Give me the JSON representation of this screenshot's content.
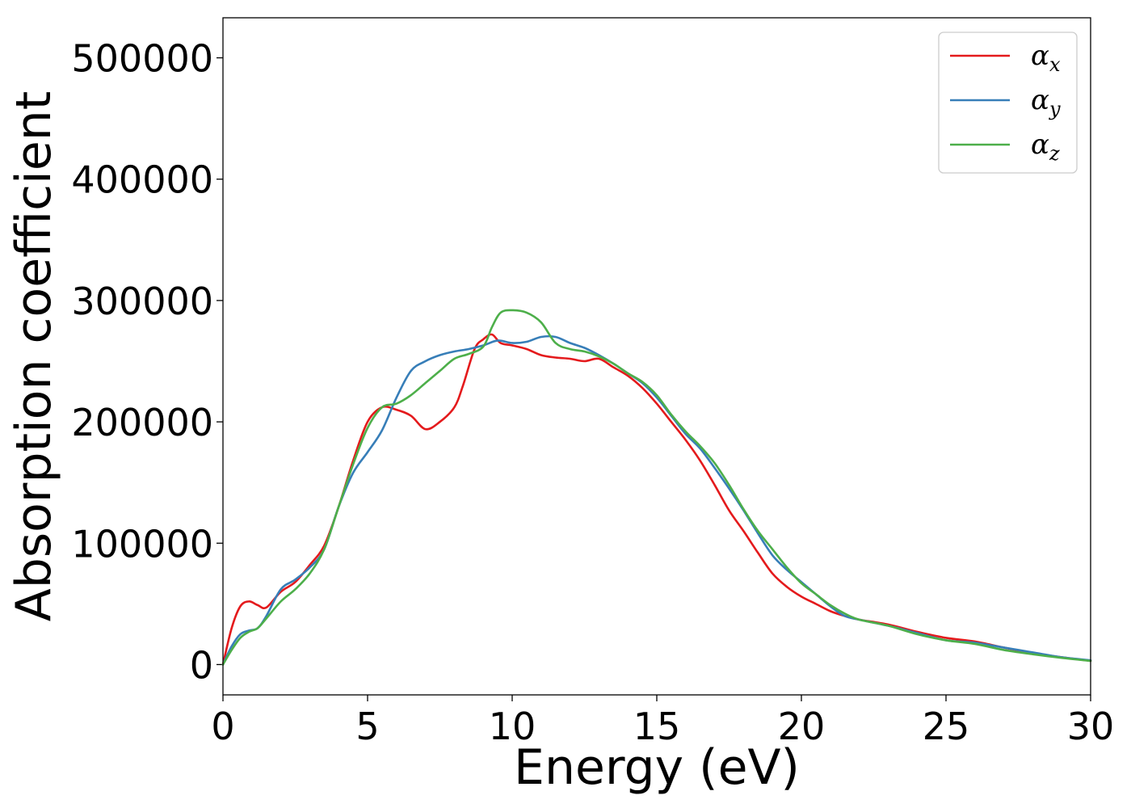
{
  "chart_data": {
    "type": "line",
    "title": "",
    "xlabel": "Energy (eV)",
    "ylabel": "Absorption coefficient",
    "xlim": [
      0,
      30
    ],
    "ylim": [
      -25000,
      533000
    ],
    "x_ticks": [
      0,
      5,
      10,
      15,
      20,
      25,
      30
    ],
    "y_ticks": [
      0,
      100000,
      200000,
      300000,
      400000,
      500000
    ],
    "grid": false,
    "legend_position": "top-right",
    "series": [
      {
        "name": "α",
        "subscript": "x",
        "color": "#e41a1c",
        "x": [
          0,
          0.3,
          0.6,
          0.9,
          1.2,
          1.5,
          2.0,
          2.5,
          3.0,
          3.5,
          4.0,
          4.5,
          5.0,
          5.5,
          6.0,
          6.5,
          7.0,
          7.5,
          8.0,
          8.3,
          8.7,
          9.0,
          9.3,
          9.6,
          10.0,
          10.5,
          11.0,
          11.5,
          12.0,
          12.5,
          13.0,
          13.5,
          14.0,
          14.5,
          15.0,
          15.5,
          16.0,
          16.5,
          17.0,
          17.5,
          18.0,
          18.5,
          19.0,
          19.5,
          20.0,
          20.5,
          21.0,
          21.5,
          22.0,
          23.0,
          24.0,
          25.0,
          26.0,
          27.0,
          28.0,
          29.0,
          30.0
        ],
        "y": [
          0,
          30000,
          48000,
          52000,
          49000,
          47000,
          60000,
          68000,
          82000,
          98000,
          130000,
          168000,
          200000,
          212000,
          210000,
          205000,
          194000,
          200000,
          212000,
          230000,
          260000,
          268000,
          272000,
          265000,
          263000,
          260000,
          255000,
          253000,
          252000,
          250000,
          252000,
          245000,
          238000,
          228000,
          215000,
          200000,
          185000,
          168000,
          148000,
          127000,
          110000,
          92000,
          75000,
          64000,
          56000,
          50000,
          44000,
          40000,
          37000,
          33000,
          27000,
          22000,
          19000,
          14000,
          9500,
          6000,
          3000
        ]
      },
      {
        "name": "α",
        "subscript": "y",
        "color": "#377eb8",
        "x": [
          0,
          0.3,
          0.6,
          0.9,
          1.2,
          1.5,
          2.0,
          2.5,
          3.0,
          3.5,
          4.0,
          4.5,
          5.0,
          5.5,
          6.0,
          6.5,
          7.0,
          7.5,
          8.0,
          8.5,
          9.0,
          9.5,
          10.0,
          10.5,
          11.0,
          11.5,
          12.0,
          12.5,
          13.0,
          13.5,
          14.0,
          14.5,
          15.0,
          15.5,
          16.0,
          16.5,
          17.0,
          17.5,
          18.0,
          18.5,
          19.0,
          19.5,
          20.0,
          20.5,
          21.0,
          21.5,
          22.0,
          23.0,
          24.0,
          25.0,
          26.0,
          27.0,
          28.0,
          29.0,
          30.0
        ],
        "y": [
          0,
          15000,
          25000,
          28000,
          30000,
          40000,
          62000,
          70000,
          80000,
          95000,
          130000,
          158000,
          175000,
          193000,
          220000,
          242000,
          250000,
          255000,
          258000,
          260000,
          263000,
          267000,
          265000,
          266000,
          270000,
          270000,
          265000,
          261000,
          255000,
          248000,
          240000,
          232000,
          220000,
          205000,
          190000,
          178000,
          162000,
          145000,
          127000,
          108000,
          90000,
          78000,
          68000,
          58000,
          48000,
          40000,
          37000,
          32000,
          26000,
          20000,
          18000,
          14000,
          10000,
          6000,
          3500
        ]
      },
      {
        "name": "α",
        "subscript": "z",
        "color": "#4daf4a",
        "x": [
          0,
          0.3,
          0.6,
          0.9,
          1.2,
          1.5,
          2.0,
          2.5,
          3.0,
          3.5,
          4.0,
          4.5,
          5.0,
          5.5,
          6.0,
          6.5,
          7.0,
          7.5,
          8.0,
          8.5,
          9.0,
          9.3,
          9.6,
          10.0,
          10.5,
          11.0,
          11.5,
          12.0,
          12.5,
          13.0,
          13.5,
          14.0,
          14.5,
          15.0,
          15.5,
          16.0,
          16.5,
          17.0,
          17.5,
          18.0,
          18.5,
          19.0,
          19.5,
          20.0,
          20.5,
          21.0,
          21.5,
          22.0,
          23.0,
          24.0,
          25.0,
          26.0,
          27.0,
          28.0,
          29.0,
          30.0
        ],
        "y": [
          0,
          12000,
          22000,
          27000,
          30000,
          38000,
          52000,
          62000,
          75000,
          95000,
          130000,
          165000,
          195000,
          212000,
          215000,
          222000,
          232000,
          242000,
          252000,
          256000,
          262000,
          278000,
          290000,
          292000,
          290000,
          282000,
          265000,
          260000,
          258000,
          254000,
          248000,
          240000,
          233000,
          222000,
          206000,
          192000,
          180000,
          166000,
          148000,
          128000,
          110000,
          95000,
          80000,
          67000,
          58000,
          49000,
          42000,
          37000,
          32000,
          25000,
          20000,
          17000,
          12000,
          8500,
          5500,
          3000
        ]
      }
    ]
  }
}
